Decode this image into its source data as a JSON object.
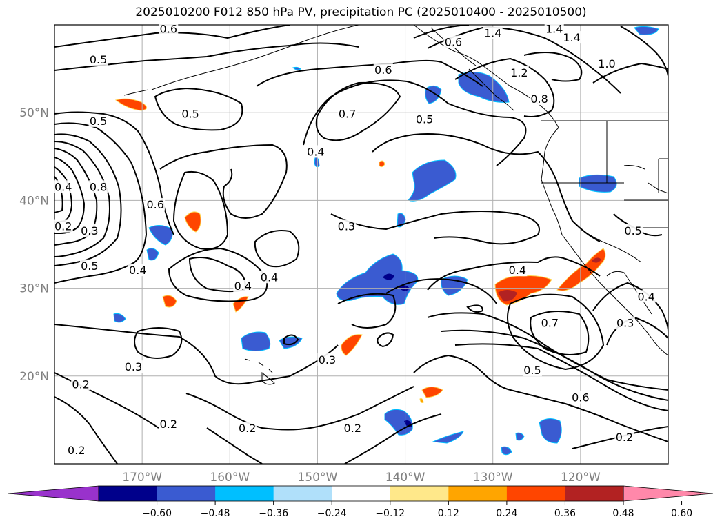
{
  "title": "2025010200 F012 850 hPa PV, precipitation PC (2025010400 - 2025010500)",
  "extent": {
    "lon": [
      -180,
      -110
    ],
    "lat": [
      10,
      60
    ]
  },
  "gridlines": true,
  "lat_ticks": [
    {
      "value": 20,
      "label": "20°N"
    },
    {
      "value": 30,
      "label": "30°N"
    },
    {
      "value": 40,
      "label": "40°N"
    },
    {
      "value": 50,
      "label": "50°N"
    }
  ],
  "lon_ticks": [
    {
      "value": -170,
      "label": "170°W"
    },
    {
      "value": -160,
      "label": "160°W"
    },
    {
      "value": -150,
      "label": "150°W"
    },
    {
      "value": -140,
      "label": "140°W"
    },
    {
      "value": -130,
      "label": "130°W"
    },
    {
      "value": -120,
      "label": "120°W"
    }
  ],
  "contour_labels": [
    {
      "text": "0.6",
      "lon": -167,
      "lat": 59.5
    },
    {
      "text": "0.5",
      "lon": -175,
      "lat": 56.0
    },
    {
      "text": "0.5",
      "lon": -175,
      "lat": 49.0
    },
    {
      "text": "0.5",
      "lon": -164.5,
      "lat": 49.8
    },
    {
      "text": "0.4",
      "lon": -179,
      "lat": 41.5
    },
    {
      "text": "0.8",
      "lon": -175,
      "lat": 41.5
    },
    {
      "text": "0.6",
      "lon": -168.5,
      "lat": 39.5
    },
    {
      "text": "0.2",
      "lon": -179,
      "lat": 37.0
    },
    {
      "text": "0.3",
      "lon": -176,
      "lat": 36.5
    },
    {
      "text": "0.5",
      "lon": -176,
      "lat": 32.5
    },
    {
      "text": "0.4",
      "lon": -170.5,
      "lat": 32.0
    },
    {
      "text": "0.4",
      "lon": -158.5,
      "lat": 30.2
    },
    {
      "text": "0.4",
      "lon": -155.5,
      "lat": 31.2
    },
    {
      "text": "0.6",
      "lon": -142.5,
      "lat": 54.8
    },
    {
      "text": "0.7",
      "lon": -146.6,
      "lat": 49.8
    },
    {
      "text": "0.4",
      "lon": -150.2,
      "lat": 45.5
    },
    {
      "text": "0.5",
      "lon": -137.8,
      "lat": 49.2
    },
    {
      "text": "0.3",
      "lon": -146.7,
      "lat": 37.0
    },
    {
      "text": "0.3",
      "lon": -148.9,
      "lat": 21.8
    },
    {
      "text": "0.3",
      "lon": -171,
      "lat": 21.0
    },
    {
      "text": "0.2",
      "lon": -177,
      "lat": 19.0
    },
    {
      "text": "0.2",
      "lon": -167,
      "lat": 14.5
    },
    {
      "text": "0.2",
      "lon": -158,
      "lat": 14.0
    },
    {
      "text": "0.2",
      "lon": -146,
      "lat": 14.0
    },
    {
      "text": "0.2",
      "lon": -177.5,
      "lat": 11.5
    },
    {
      "text": "0.6",
      "lon": -134.5,
      "lat": 58.0
    },
    {
      "text": "1.4",
      "lon": -130,
      "lat": 59.0
    },
    {
      "text": "1.4",
      "lon": -123,
      "lat": 59.5
    },
    {
      "text": "1.4",
      "lon": -121,
      "lat": 58.5
    },
    {
      "text": "1.2",
      "lon": -127,
      "lat": 54.5
    },
    {
      "text": "1.0",
      "lon": -117,
      "lat": 55.5
    },
    {
      "text": "0.8",
      "lon": -124.7,
      "lat": 51.5
    },
    {
      "text": "0.5",
      "lon": -114,
      "lat": 36.5
    },
    {
      "text": "0.4",
      "lon": -127.2,
      "lat": 32.0
    },
    {
      "text": "0.7",
      "lon": -123.5,
      "lat": 26.0
    },
    {
      "text": "0.3",
      "lon": -114.9,
      "lat": 26.0
    },
    {
      "text": "0.4",
      "lon": -112.5,
      "lat": 29.0
    },
    {
      "text": "0.5",
      "lon": -125.5,
      "lat": 20.6
    },
    {
      "text": "0.6",
      "lon": -120,
      "lat": 17.5
    },
    {
      "text": "0.2",
      "lon": -115,
      "lat": 13.0
    }
  ],
  "colorbar": {
    "ticks": [
      "−0.60",
      "−0.48",
      "−0.36",
      "−0.24",
      "−0.12",
      "0.12",
      "0.24",
      "0.36",
      "0.48",
      "0.60"
    ],
    "colors": [
      "#9932cc",
      "#00008b",
      "#3a5bd1",
      "#00bfff",
      "#b0e0fa",
      "#ffffff",
      "#ffe88a",
      "#ffa500",
      "#ff4500",
      "#b22222",
      "#ff88aa"
    ]
  }
}
